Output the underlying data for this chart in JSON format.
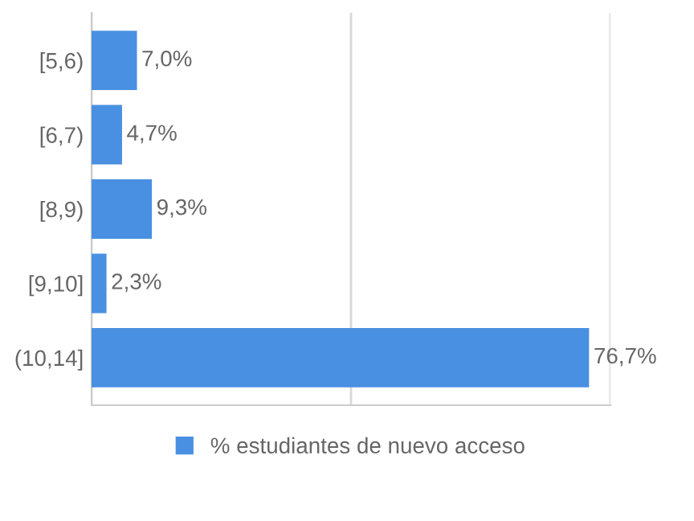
{
  "chart_data": {
    "type": "bar",
    "orientation": "horizontal",
    "categories": [
      "[5,6)",
      "[6,7)",
      "[8,9)",
      "[9,10]",
      "(10,14]"
    ],
    "series": [
      {
        "name": "% estudiantes de nuevo acceso",
        "color": "#4a90e2",
        "values": [
          7.0,
          4.7,
          9.3,
          2.3,
          76.7
        ],
        "value_labels": [
          "7,0%",
          "4,7%",
          "9,3%",
          "2,3%",
          "76,7%"
        ]
      }
    ],
    "xlim": [
      0,
      80
    ],
    "xticks": [
      {
        "value": 0,
        "label": null
      },
      {
        "value": 40,
        "label": null
      },
      {
        "value": 80,
        "label": null
      }
    ],
    "grid": "x",
    "legend": "bottom",
    "tick_labels": "y"
  }
}
